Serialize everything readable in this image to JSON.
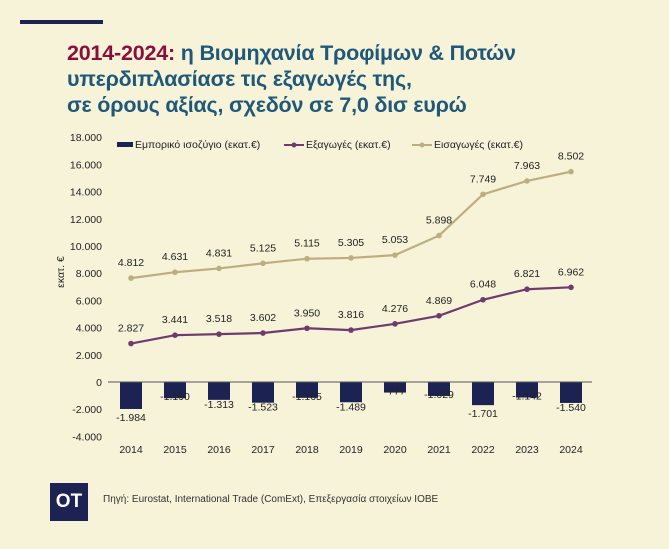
{
  "title": {
    "highlight": "2014-2024:",
    "line1": " η Βιομηχανία Τροφίμων & Ποτών",
    "line2": "υπερδιπλασίασε τις εξαγωγές της,",
    "line3": "σε όρους αξίας, σχεδόν σε 7,0 δισ ευρώ"
  },
  "logo": "OT",
  "source": "Πηγή: Eurostat, International Trade (ComExt), Επεξεργασία στοιχείων ΙΟΒΕ",
  "colors": {
    "balance": "#1c2353",
    "exports": "#6e3b6e",
    "imports": "#bcae80",
    "title": "#1f5879",
    "highlight": "#8a0f3a"
  },
  "chart_data": {
    "type": "bar+line",
    "stacked_lines": true,
    "categories": [
      "2014",
      "2015",
      "2016",
      "2017",
      "2018",
      "2019",
      "2020",
      "2021",
      "2022",
      "2023",
      "2024"
    ],
    "series": [
      {
        "name": "Εμπορικό ισοζύγιο (εκατ.€)",
        "type": "bar",
        "values": [
          -1984,
          -1190,
          -1313,
          -1523,
          -1165,
          -1489,
          -777,
          -1029,
          -1701,
          -1142,
          -1540
        ],
        "labels": [
          "-1.984",
          "-1.190",
          "-1.313",
          "-1.523",
          "-1.165",
          "-1.489",
          "-777",
          "-1.029",
          "-1.701",
          "-1.142",
          "-1.540"
        ]
      },
      {
        "name": "Εξαγωγές (εκατ.€)",
        "type": "line",
        "values": [
          2827,
          3441,
          3518,
          3602,
          3950,
          3816,
          4276,
          4869,
          6048,
          6821,
          6962
        ],
        "labels": [
          "2.827",
          "3.441",
          "3.518",
          "3.602",
          "3.950",
          "3.816",
          "4.276",
          "4.869",
          "6.048",
          "6.821",
          "6.962"
        ]
      },
      {
        "name": "Εισαγωγές (εκατ.€)",
        "type": "line",
        "values": [
          4812,
          4631,
          4831,
          5125,
          5115,
          5305,
          5053,
          5898,
          7749,
          7963,
          8502
        ],
        "labels": [
          "4.812",
          "4.631",
          "4.831",
          "5.125",
          "5.115",
          "5.305",
          "5.053",
          "5.898",
          "7.749",
          "7.963",
          "8.502"
        ]
      }
    ],
    "ylabel": "εκατ. €",
    "ylim": [
      -4000,
      18000
    ],
    "yticks": [
      18000,
      16000,
      14000,
      12000,
      10000,
      8000,
      6000,
      4000,
      2000,
      0,
      -2000,
      -4000
    ],
    "ytick_labels": [
      "18.000",
      "16.000",
      "14.000",
      "12.000",
      "10.000",
      "8.000",
      "6.000",
      "4.000",
      "2.000",
      "0",
      "-2.000",
      "-4.000"
    ],
    "legend": "top",
    "grid": false
  }
}
